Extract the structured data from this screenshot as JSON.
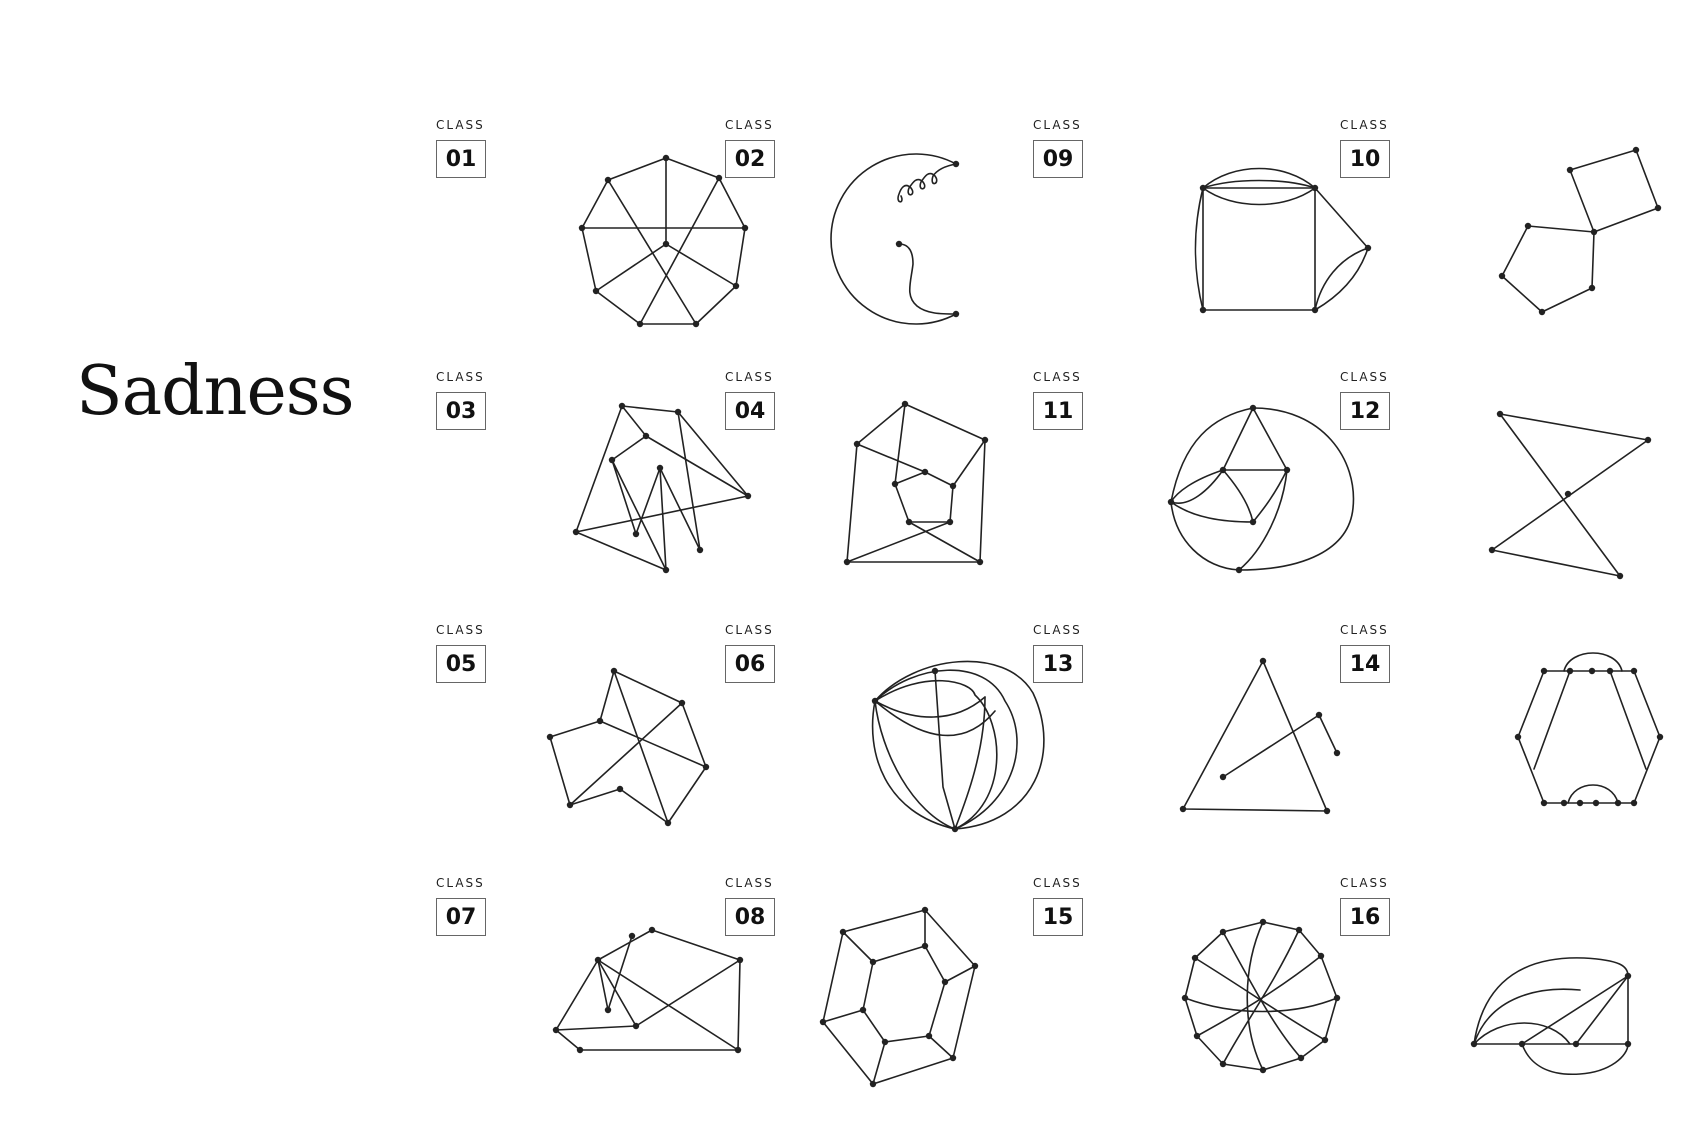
{
  "title": "Sadness",
  "class_label": "CLASS",
  "stroke_color": "#222222",
  "classes": [
    {
      "number": "01"
    },
    {
      "number": "02"
    },
    {
      "number": "09"
    },
    {
      "number": "10"
    },
    {
      "number": "03"
    },
    {
      "number": "04"
    },
    {
      "number": "11"
    },
    {
      "number": "12"
    },
    {
      "number": "05"
    },
    {
      "number": "06"
    },
    {
      "number": "13"
    },
    {
      "number": "14"
    },
    {
      "number": "07"
    },
    {
      "number": "08"
    },
    {
      "number": "15"
    },
    {
      "number": "16"
    }
  ]
}
